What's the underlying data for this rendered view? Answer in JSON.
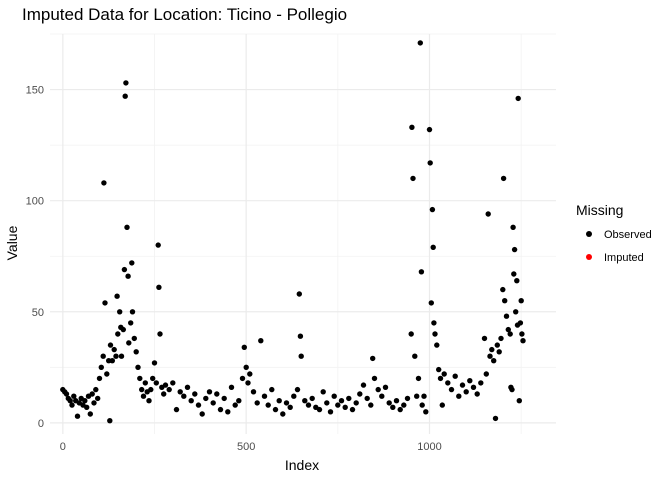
{
  "chart_data": {
    "type": "scatter",
    "title": "Imputed Data for Location: Ticino - Pollegio",
    "xlabel": "Index",
    "ylabel": "Value",
    "xlim": [
      -35,
      1345
    ],
    "ylim": [
      -5,
      175
    ],
    "xticks": [
      0,
      500,
      1000
    ],
    "xtick_labels": [
      "0",
      "500",
      "1000"
    ],
    "yticks": [
      0,
      50,
      100,
      150
    ],
    "ytick_labels": [
      "0",
      "50",
      "100",
      "150"
    ],
    "grid": true,
    "legend": {
      "title": "Missing",
      "position": "right",
      "entries": [
        {
          "label": "Observed",
          "color": "#000000"
        },
        {
          "label": "Imputed",
          "color": "#ff0000"
        }
      ]
    },
    "series": [
      {
        "name": "Observed",
        "color": "#000000",
        "points": [
          [
            0,
            15
          ],
          [
            5,
            14
          ],
          [
            10,
            13
          ],
          [
            15,
            11
          ],
          [
            20,
            10
          ],
          [
            25,
            8
          ],
          [
            30,
            12
          ],
          [
            35,
            10
          ],
          [
            40,
            3
          ],
          [
            45,
            9
          ],
          [
            50,
            11
          ],
          [
            55,
            8
          ],
          [
            60,
            10
          ],
          [
            65,
            7
          ],
          [
            70,
            12
          ],
          [
            75,
            4
          ],
          [
            80,
            13
          ],
          [
            85,
            9
          ],
          [
            90,
            15
          ],
          [
            95,
            11
          ],
          [
            100,
            20
          ],
          [
            105,
            25
          ],
          [
            110,
            30
          ],
          [
            112,
            108
          ],
          [
            115,
            54
          ],
          [
            120,
            22
          ],
          [
            125,
            28
          ],
          [
            128,
            1
          ],
          [
            130,
            35
          ],
          [
            135,
            28
          ],
          [
            140,
            33
          ],
          [
            145,
            30
          ],
          [
            148,
            57
          ],
          [
            150,
            40
          ],
          [
            155,
            50
          ],
          [
            158,
            43
          ],
          [
            160,
            30
          ],
          [
            165,
            42
          ],
          [
            168,
            69
          ],
          [
            170,
            147
          ],
          [
            172,
            153
          ],
          [
            175,
            88
          ],
          [
            178,
            66
          ],
          [
            180,
            36
          ],
          [
            185,
            45
          ],
          [
            188,
            72
          ],
          [
            190,
            50
          ],
          [
            195,
            38
          ],
          [
            200,
            32
          ],
          [
            205,
            25
          ],
          [
            210,
            20
          ],
          [
            215,
            15
          ],
          [
            220,
            12
          ],
          [
            225,
            18
          ],
          [
            230,
            14
          ],
          [
            235,
            10
          ],
          [
            240,
            15
          ],
          [
            245,
            20
          ],
          [
            250,
            27
          ],
          [
            255,
            18
          ],
          [
            260,
            80
          ],
          [
            262,
            61
          ],
          [
            265,
            40
          ],
          [
            270,
            16
          ],
          [
            275,
            13
          ],
          [
            280,
            17
          ],
          [
            290,
            15
          ],
          [
            300,
            18
          ],
          [
            310,
            6
          ],
          [
            320,
            14
          ],
          [
            330,
            12
          ],
          [
            340,
            16
          ],
          [
            350,
            10
          ],
          [
            360,
            13
          ],
          [
            370,
            8
          ],
          [
            380,
            4
          ],
          [
            390,
            11
          ],
          [
            400,
            14
          ],
          [
            410,
            9
          ],
          [
            420,
            13
          ],
          [
            430,
            6
          ],
          [
            440,
            11
          ],
          [
            450,
            5
          ],
          [
            460,
            16
          ],
          [
            470,
            8
          ],
          [
            480,
            10
          ],
          [
            490,
            20
          ],
          [
            495,
            34
          ],
          [
            500,
            25
          ],
          [
            505,
            18
          ],
          [
            510,
            22
          ],
          [
            520,
            14
          ],
          [
            530,
            9
          ],
          [
            540,
            37
          ],
          [
            550,
            12
          ],
          [
            560,
            8
          ],
          [
            570,
            15
          ],
          [
            580,
            6
          ],
          [
            590,
            10
          ],
          [
            600,
            4
          ],
          [
            610,
            9
          ],
          [
            620,
            7
          ],
          [
            630,
            12
          ],
          [
            640,
            15
          ],
          [
            645,
            58
          ],
          [
            648,
            39
          ],
          [
            650,
            30
          ],
          [
            660,
            10
          ],
          [
            670,
            8
          ],
          [
            680,
            11
          ],
          [
            690,
            7
          ],
          [
            700,
            6
          ],
          [
            710,
            14
          ],
          [
            720,
            9
          ],
          [
            730,
            5
          ],
          [
            740,
            12
          ],
          [
            750,
            8
          ],
          [
            760,
            10
          ],
          [
            770,
            7
          ],
          [
            780,
            11
          ],
          [
            790,
            6
          ],
          [
            800,
            9
          ],
          [
            810,
            13
          ],
          [
            820,
            17
          ],
          [
            830,
            11
          ],
          [
            840,
            8
          ],
          [
            845,
            29
          ],
          [
            850,
            20
          ],
          [
            860,
            15
          ],
          [
            870,
            12
          ],
          [
            880,
            16
          ],
          [
            890,
            9
          ],
          [
            900,
            7
          ],
          [
            910,
            10
          ],
          [
            920,
            6
          ],
          [
            930,
            8
          ],
          [
            940,
            11
          ],
          [
            950,
            40
          ],
          [
            952,
            133
          ],
          [
            955,
            110
          ],
          [
            960,
            30
          ],
          [
            965,
            12
          ],
          [
            970,
            20
          ],
          [
            975,
            171
          ],
          [
            978,
            68
          ],
          [
            980,
            8
          ],
          [
            985,
            12
          ],
          [
            990,
            5
          ],
          [
            1000,
            132
          ],
          [
            1002,
            117
          ],
          [
            1005,
            54
          ],
          [
            1008,
            96
          ],
          [
            1010,
            79
          ],
          [
            1012,
            45
          ],
          [
            1015,
            40
          ],
          [
            1020,
            35
          ],
          [
            1025,
            24
          ],
          [
            1030,
            20
          ],
          [
            1035,
            8
          ],
          [
            1040,
            22
          ],
          [
            1050,
            18
          ],
          [
            1060,
            15
          ],
          [
            1070,
            21
          ],
          [
            1080,
            12
          ],
          [
            1090,
            17
          ],
          [
            1100,
            14
          ],
          [
            1110,
            19
          ],
          [
            1120,
            16
          ],
          [
            1130,
            13
          ],
          [
            1140,
            18
          ],
          [
            1150,
            38
          ],
          [
            1155,
            22
          ],
          [
            1160,
            94
          ],
          [
            1165,
            30
          ],
          [
            1170,
            33
          ],
          [
            1175,
            28
          ],
          [
            1180,
            2
          ],
          [
            1185,
            35
          ],
          [
            1190,
            32
          ],
          [
            1195,
            38
          ],
          [
            1200,
            60
          ],
          [
            1202,
            110
          ],
          [
            1205,
            55
          ],
          [
            1210,
            48
          ],
          [
            1215,
            42
          ],
          [
            1220,
            40
          ],
          [
            1222,
            16
          ],
          [
            1225,
            15
          ],
          [
            1228,
            88
          ],
          [
            1230,
            67
          ],
          [
            1232,
            78
          ],
          [
            1235,
            50
          ],
          [
            1238,
            64
          ],
          [
            1240,
            44
          ],
          [
            1242,
            146
          ],
          [
            1245,
            10
          ],
          [
            1248,
            45
          ],
          [
            1250,
            55
          ],
          [
            1252,
            40
          ],
          [
            1255,
            37
          ]
        ]
      },
      {
        "name": "Imputed",
        "color": "#ff0000",
        "points": []
      }
    ]
  }
}
